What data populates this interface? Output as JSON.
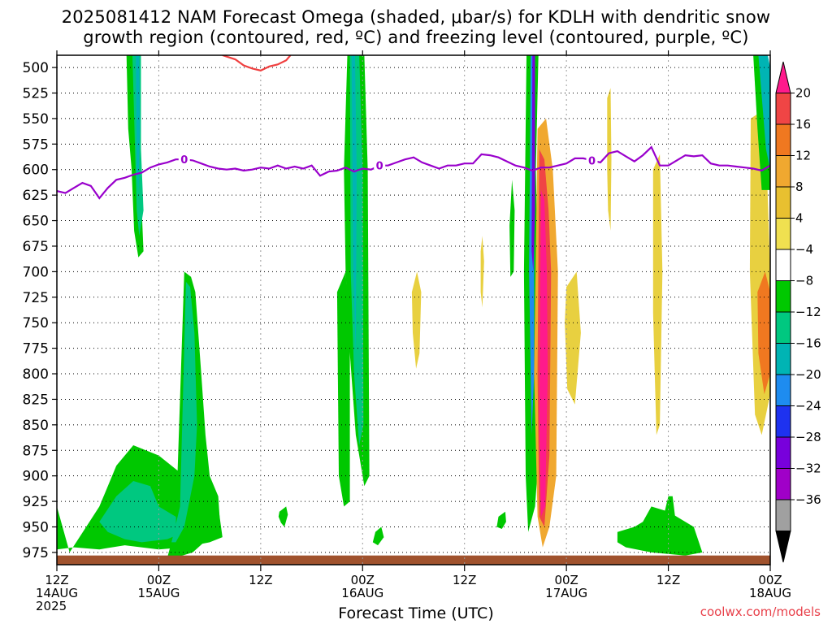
{
  "title_line1": "2025081412 NAM Forecast Omega (shaded, μbar/s) for KDLH with dendritic snow",
  "title_line2": "growth region (contoured, red, ºC) and freezing level (contoured, purple, ºC)",
  "credit": "coolwx.com/models",
  "chart_data": {
    "type": "heatmap",
    "title": "2025081412 NAM Forecast Omega (shaded, μbar/s) for KDLH with dendritic snow growth region (contoured, red, ºC) and freezing level (contoured, purple, ºC)",
    "xlabel": "Forecast Time (UTC)",
    "ylabel": "",
    "y_axis": {
      "ticks": [
        500,
        525,
        550,
        575,
        600,
        625,
        650,
        675,
        700,
        725,
        750,
        775,
        800,
        825,
        850,
        875,
        900,
        925,
        950,
        975
      ],
      "ylim": [
        987,
        488
      ],
      "inverted": true
    },
    "x_axis": {
      "xlim_hours": [
        0,
        84
      ],
      "ticks": [
        {
          "h": 0,
          "line1": "12Z",
          "line2": "14AUG",
          "line3": "2025"
        },
        {
          "h": 12,
          "line1": "00Z",
          "line2": "15AUG",
          "line3": ""
        },
        {
          "h": 24,
          "line1": "12Z",
          "line2": "",
          "line3": ""
        },
        {
          "h": 36,
          "line1": "00Z",
          "line2": "16AUG",
          "line3": ""
        },
        {
          "h": 48,
          "line1": "12Z",
          "line2": "",
          "line3": ""
        },
        {
          "h": 60,
          "line1": "00Z",
          "line2": "17AUG",
          "line3": ""
        },
        {
          "h": 72,
          "line1": "12Z",
          "line2": "",
          "line3": ""
        },
        {
          "h": 84,
          "line1": "00Z",
          "line2": "18AUG",
          "line3": ""
        }
      ]
    },
    "grid": true,
    "colorbar": {
      "labels": [
        "20",
        "16",
        "12",
        "8",
        "4",
        "−4",
        "−8",
        "−12",
        "−16",
        "−20",
        "−24",
        "−28",
        "−32",
        "−36"
      ],
      "colors": [
        "#ff1a8c",
        "#f04545",
        "#f07820",
        "#f0a830",
        "#e8c030",
        "#f0e050",
        "#ffffff",
        "#00c800",
        "#00c880",
        "#00b4b4",
        "#1e8cf0",
        "#1e32f0",
        "#7800dc",
        "#a000c8",
        "#a0a0a0",
        "#000000"
      ]
    },
    "freezing_level": {
      "label": "0",
      "x_hours": [
        0,
        1,
        2,
        3,
        4,
        5,
        6,
        7,
        8,
        9,
        10,
        11,
        12,
        13,
        14,
        15,
        16,
        17,
        18,
        19,
        20,
        21,
        22,
        23,
        24,
        25,
        26,
        27,
        28,
        29,
        30,
        31,
        32,
        33,
        34,
        35,
        36,
        37,
        38,
        39,
        40,
        41,
        42,
        43,
        44,
        45,
        46,
        47,
        48,
        49,
        50,
        51,
        52,
        53,
        54,
        55,
        56,
        57,
        58,
        59,
        60,
        61,
        62,
        63,
        64,
        65,
        66,
        67,
        68,
        69,
        70,
        71,
        72,
        73,
        74,
        75,
        76,
        77,
        78,
        79,
        80,
        81,
        82,
        83,
        84
      ],
      "p": [
        621,
        623,
        618,
        613,
        616,
        628,
        618,
        610,
        608,
        605,
        603,
        598,
        595,
        593,
        590,
        590,
        591,
        594,
        597,
        599,
        600,
        599,
        601,
        600,
        598,
        599,
        596,
        599,
        597,
        599,
        596,
        606,
        602,
        601,
        598,
        602,
        599,
        600,
        596,
        596,
        593,
        590,
        588,
        593,
        596,
        599,
        596,
        596,
        594,
        594,
        585,
        586,
        588,
        592,
        596,
        598,
        601,
        598,
        598,
        596,
        594,
        589,
        589,
        591,
        593,
        584,
        582,
        587,
        592,
        586,
        578,
        596,
        596,
        591,
        586,
        587,
        586,
        594,
        596,
        596,
        597,
        598,
        599,
        601,
        596
      ]
    },
    "dgz_contour": {
      "x_hours": [
        19.5,
        21,
        22,
        23,
        24,
        25,
        26,
        27,
        27.5
      ],
      "p": [
        488,
        492,
        498,
        501,
        503,
        499,
        497,
        493,
        488
      ]
    },
    "omega_areas": [
      {
        "name": "A",
        "value": -6,
        "x": [
          8.2,
          9.4,
          9.3,
          9.7,
          10,
          10.2,
          9.6,
          9.1,
          8.8,
          8.4
        ],
        "p": [
          488,
          488,
          570,
          600,
          640,
          680,
          686,
          660,
          600,
          560
        ]
      },
      {
        "name": "B",
        "value": -10,
        "x": [
          8.9,
          9.9,
          9.9,
          10.2,
          9.7,
          9.4,
          9.2
        ],
        "p": [
          488,
          488,
          580,
          640,
          665,
          640,
          580
        ]
      },
      {
        "name": "C",
        "value": -14,
        "x": [
          9.3,
          9.7,
          9.8,
          9.6,
          9.4
        ],
        "p": [
          488,
          488,
          560,
          620,
          600
        ]
      },
      {
        "name": "D",
        "value": -6,
        "x": [
          1.5,
          5,
          7,
          9,
          12,
          15,
          18,
          19,
          19.5,
          18,
          15,
          12,
          8,
          5,
          2,
          0,
          0
        ],
        "p": [
          975,
          930,
          890,
          870,
          880,
          900,
          920,
          930,
          960,
          965,
          970,
          972,
          968,
          972,
          970,
          972,
          930
        ]
      },
      {
        "name": "E",
        "value": -10,
        "x": [
          5,
          7,
          9,
          11,
          12,
          14,
          15,
          13,
          10,
          8,
          6
        ],
        "p": [
          945,
          920,
          905,
          910,
          930,
          940,
          955,
          962,
          965,
          962,
          955
        ]
      },
      {
        "name": "F",
        "value": -6,
        "x": [
          13,
          14,
          15,
          15.8,
          16.3,
          17,
          17.5,
          18,
          19,
          19.2,
          18,
          16,
          14
        ],
        "p": [
          980,
          950,
          700,
          705,
          720,
          800,
          860,
          900,
          920,
          945,
          960,
          975,
          980
        ]
      },
      {
        "name": "G",
        "value": -10,
        "x": [
          13.5,
          14.5,
          15.2,
          15.7,
          16.2,
          16.5,
          16.2,
          15,
          14
        ],
        "p": [
          965,
          930,
          710,
          715,
          760,
          850,
          900,
          950,
          965
        ]
      },
      {
        "name": "H",
        "value": -6,
        "x": [
          34.2,
          36.2,
          36.6,
          36.8,
          36.2,
          35.2,
          34.5,
          34,
          33.8
        ],
        "p": [
          488,
          488,
          600,
          900,
          910,
          860,
          780,
          700,
          600
        ]
      },
      {
        "name": "I",
        "value": -10,
        "x": [
          34.5,
          35.6,
          36,
          36.1,
          35.6,
          35,
          34.6
        ],
        "p": [
          488,
          488,
          600,
          850,
          870,
          800,
          700
        ]
      },
      {
        "name": "J",
        "value": -14,
        "x": [
          34.7,
          35.1,
          35.3,
          35.2,
          34.9
        ],
        "p": [
          488,
          488,
          600,
          780,
          700
        ]
      },
      {
        "name": "K",
        "value": -6,
        "x": [
          33,
          34,
          34.5,
          34.5,
          33.8,
          33.2
        ],
        "p": [
          720,
          700,
          760,
          925,
          930,
          900
        ]
      },
      {
        "name": "L",
        "value": 6,
        "x": [
          41.8,
          42.4,
          42.9,
          42.7,
          42.3,
          41.9
        ],
        "p": [
          720,
          700,
          720,
          780,
          795,
          760
        ]
      },
      {
        "name": "M",
        "value": 6,
        "x": [
          49.9,
          50.1,
          50.3,
          50.1,
          49.9
        ],
        "p": [
          680,
          665,
          690,
          735,
          720
        ]
      },
      {
        "name": "N",
        "value": -6,
        "x": [
          53.3,
          53.6,
          53.9,
          53.8,
          53.4
        ],
        "p": [
          655,
          610,
          640,
          700,
          705
        ]
      },
      {
        "name": "O",
        "value": -6,
        "x": [
          55.3,
          56.7,
          56.4,
          57,
          56.3,
          55.5,
          55.2,
          55
        ],
        "p": [
          488,
          488,
          600,
          850,
          930,
          955,
          900,
          700
        ]
      },
      {
        "name": "P",
        "value": -16,
        "x": [
          55.8,
          56.3,
          56.2,
          56.2,
          55.9,
          55.6
        ],
        "p": [
          488,
          488,
          600,
          800,
          860,
          700
        ]
      },
      {
        "name": "Q",
        "value": -26,
        "x": [
          56,
          56.3,
          56.3,
          56.1,
          55.9
        ],
        "p": [
          488,
          488,
          640,
          700,
          680
        ]
      },
      {
        "name": "R",
        "value": 8,
        "x": [
          56.6,
          57.6,
          58.4,
          59,
          58.8,
          58,
          57.2,
          56.6,
          56.2
        ],
        "p": [
          560,
          550,
          600,
          700,
          900,
          950,
          970,
          940,
          800
        ]
      },
      {
        "name": "S",
        "value": 16,
        "x": [
          56.8,
          57.4,
          57.9,
          58.2,
          58,
          57.4,
          56.8,
          56.6
        ],
        "p": [
          580,
          590,
          640,
          700,
          880,
          950,
          940,
          800
        ]
      },
      {
        "name": "T",
        "value": 20,
        "x": [
          57,
          57.4,
          57.7,
          57.8,
          57.5,
          57,
          56.8
        ],
        "p": [
          620,
          630,
          700,
          800,
          930,
          940,
          850
        ]
      },
      {
        "name": "U",
        "value": 6,
        "x": [
          60,
          61.2,
          61.7,
          61,
          60.1,
          59.8
        ],
        "p": [
          715,
          700,
          760,
          830,
          815,
          750
        ]
      },
      {
        "name": "V",
        "value": 6,
        "x": [
          64.8,
          65.2,
          65.3,
          65.2,
          64.9,
          64.8
        ],
        "p": [
          530,
          520,
          590,
          660,
          640,
          600
        ]
      },
      {
        "name": "W",
        "value": 6,
        "x": [
          70.2,
          71,
          71.3,
          71,
          70.6,
          70.2
        ],
        "p": [
          600,
          585,
          700,
          850,
          860,
          740
        ]
      },
      {
        "name": "X",
        "value": -6,
        "x": [
          66,
          68,
          69,
          70,
          72,
          74,
          75,
          76,
          74,
          70,
          67,
          66
        ],
        "p": [
          955,
          950,
          945,
          930,
          935,
          945,
          950,
          975,
          978,
          975,
          970,
          965
        ]
      },
      {
        "name": "Y",
        "value": -6,
        "x": [
          71,
          72,
          72.5,
          72.8,
          72.3,
          71.3
        ],
        "p": [
          955,
          920,
          920,
          940,
          960,
          960
        ]
      },
      {
        "name": "Z",
        "value": 6,
        "x": [
          81.7,
          82.6,
          83.6,
          84,
          84,
          83,
          82.2,
          81.6
        ],
        "p": [
          550,
          545,
          600,
          700,
          820,
          860,
          840,
          700
        ]
      },
      {
        "name": "AA",
        "value": 12,
        "x": [
          82.5,
          83.4,
          84,
          84,
          83.3,
          82.6
        ],
        "p": [
          720,
          700,
          720,
          800,
          820,
          780
        ]
      },
      {
        "name": "AB",
        "value": -6,
        "x": [
          82,
          83.4,
          84,
          84,
          83,
          82.5
        ],
        "p": [
          488,
          488,
          500,
          620,
          620,
          560
        ]
      },
      {
        "name": "AC",
        "value": -12,
        "x": [
          82.6,
          83.7,
          84,
          84,
          83.5
        ],
        "p": [
          488,
          488,
          500,
          600,
          580
        ]
      },
      {
        "name": "AD",
        "value": -6,
        "x": [
          26.2,
          27,
          27.2,
          26.8,
          26.4,
          26.1
        ],
        "p": [
          935,
          930,
          938,
          950,
          946,
          940
        ]
      },
      {
        "name": "AE",
        "value": -6,
        "x": [
          37.5,
          38.2,
          38.5,
          37.8,
          37.2
        ],
        "p": [
          955,
          950,
          960,
          968,
          965
        ]
      },
      {
        "name": "AF",
        "value": -6,
        "x": [
          52,
          52.8,
          52.9,
          52.4,
          51.8
        ],
        "p": [
          940,
          935,
          945,
          952,
          950
        ]
      }
    ],
    "ground": {
      "color": "#a0522d",
      "p_top": 978
    }
  }
}
